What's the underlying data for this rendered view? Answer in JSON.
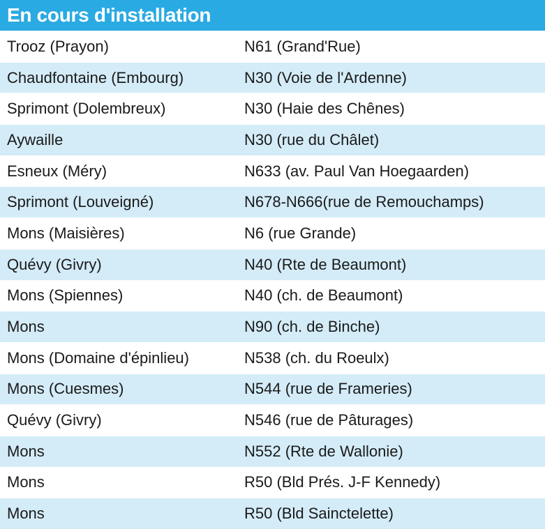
{
  "colors": {
    "header_bg": "#2aaae2",
    "row_tint": "#d4ecf8",
    "row_light": "#ffffff"
  },
  "header": {
    "title": "En cours d'installation"
  },
  "rows": [
    {
      "place": "Trooz (Prayon)",
      "road": "N61 (Grand'Rue)"
    },
    {
      "place": "Chaudfontaine (Embourg)",
      "road": "N30 (Voie de l'Ardenne)"
    },
    {
      "place": "Sprimont (Dolembreux)",
      "road": "N30 (Haie des Chênes)"
    },
    {
      "place": "Aywaille",
      "road": "N30 (rue du Châlet)"
    },
    {
      "place": "Esneux (Méry)",
      "road": "N633 (av. Paul Van Hoegaarden)"
    },
    {
      "place": "Sprimont (Louveigné)",
      "road": " N678-N666(rue de Remouchamps)"
    },
    {
      "place": "Mons (Maisières)",
      "road": "N6 (rue Grande)"
    },
    {
      "place": "Quévy (Givry)",
      "road": "N40 (Rte de Beaumont)"
    },
    {
      "place": "Mons (Spiennes)",
      "road": "N40 (ch. de Beaumont)"
    },
    {
      "place": "Mons",
      "road": "N90 (ch. de Binche)"
    },
    {
      "place": "Mons (Domaine d'épinlieu)",
      "road": "N538 (ch. du Roeulx)"
    },
    {
      "place": "Mons (Cuesmes)",
      "road": "N544 (rue de Frameries)"
    },
    {
      "place": "Quévy (Givry)",
      "road": "N546 (rue de Pâturages)"
    },
    {
      "place": "Mons",
      "road": "N552 (Rte de Wallonie)"
    },
    {
      "place": "Mons",
      "road": "R50 (Bld Prés. J-F Kennedy)"
    },
    {
      "place": "Mons",
      "road": "R50 (Bld Sainctelette)"
    }
  ]
}
